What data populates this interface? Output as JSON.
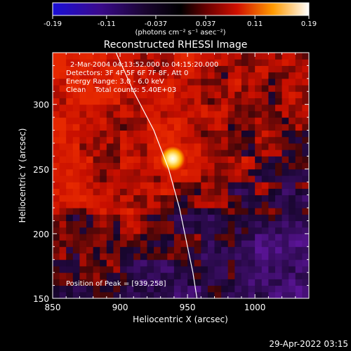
{
  "colorbar": {
    "tick_labels": [
      "-0.19",
      "-0.11",
      "-0.037",
      "0.037",
      "0.11",
      "0.19"
    ],
    "tick_values": [
      -0.19,
      -0.11,
      -0.037,
      0.037,
      0.11,
      0.19
    ],
    "range": [
      -0.19,
      0.19
    ],
    "unit_label": "(photons cm⁻² s⁻¹ asec⁻²)",
    "colors": [
      "#1a0fd6",
      "#2d0a6a",
      "#000000",
      "#7a0000",
      "#e61a00",
      "#ffae00",
      "#ffffff"
    ]
  },
  "chart_data": {
    "type": "heatmap",
    "title": "Reconstructed RHESSI Image",
    "xlabel": "Heliocentric X (arcsec)",
    "ylabel": "Heliocentric Y (arcsec)",
    "xlim": [
      850,
      1040
    ],
    "ylim": [
      150,
      340
    ],
    "x_ticks": [
      850,
      900,
      950,
      1000
    ],
    "y_ticks": [
      150,
      200,
      250,
      300
    ],
    "x_tick_labels": [
      "850",
      "900",
      "950",
      "1000"
    ],
    "y_tick_labels": [
      "150",
      "200",
      "250",
      "300"
    ],
    "peak": {
      "x": 939,
      "y": 258
    },
    "annotations": [
      "2-Mar-2004 04:13:52.000 to 04:15:20.000",
      "Detectors: 3F 4F 5F 6F 7F 8F, Att 0",
      "Energy Range: 3.0 - 6.0 keV",
      "Clean    Total counts: 5.40E+03"
    ],
    "peak_label": "Position of Peak = [939,258]",
    "limb": [
      [
        897,
        340
      ],
      [
        910,
        310
      ],
      [
        925,
        280
      ],
      [
        936,
        250
      ],
      [
        944,
        220
      ],
      [
        950,
        190
      ],
      [
        954,
        170
      ],
      [
        957,
        150
      ]
    ]
  },
  "footer": {
    "date": "29-Apr-2022 03:15"
  }
}
